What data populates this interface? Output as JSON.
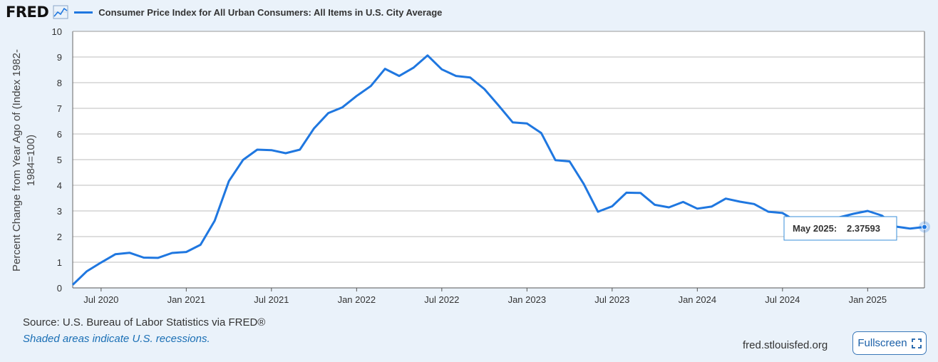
{
  "header": {
    "logo_text": "FRED",
    "legend_title": "Consumer Price Index for All Urban Consumers: All Items in U.S. City Average"
  },
  "footer": {
    "source": "Source: U.S. Bureau of Labor Statistics via FRED®",
    "recession_note": "Shaded areas indicate U.S. recessions.",
    "site": "fred.stlouisfed.org",
    "fullscreen_label": "Fullscreen"
  },
  "colors": {
    "series": "#1f77e0",
    "background": "#eaf2fa",
    "plot": "#ffffff",
    "grid": "#bdbdbd"
  },
  "icons": [
    "chart-icon",
    "fullscreen-icon"
  ],
  "chart_data": {
    "type": "line",
    "title": "",
    "ylabel": "Percent Change from Year Ago of (Index 1982-1984=100)",
    "ylim": [
      0,
      10
    ],
    "yticks": [
      0,
      1,
      2,
      3,
      4,
      5,
      6,
      7,
      8,
      9,
      10
    ],
    "xlim": [
      "2020-05",
      "2025-05"
    ],
    "xticks": [
      {
        "label": "Jul 2020",
        "date": "2020-07"
      },
      {
        "label": "Jan 2021",
        "date": "2021-01"
      },
      {
        "label": "Jul 2021",
        "date": "2021-07"
      },
      {
        "label": "Jan 2022",
        "date": "2022-01"
      },
      {
        "label": "Jul 2022",
        "date": "2022-07"
      },
      {
        "label": "Jan 2023",
        "date": "2023-01"
      },
      {
        "label": "Jul 2023",
        "date": "2023-07"
      },
      {
        "label": "Jan 2024",
        "date": "2024-01"
      },
      {
        "label": "Jul 2024",
        "date": "2024-07"
      },
      {
        "label": "Jan 2025",
        "date": "2025-01"
      }
    ],
    "grid": true,
    "series": [
      {
        "name": "Consumer Price Index for All Urban Consumers: All Items in U.S. City Average",
        "x": [
          "2020-05",
          "2020-06",
          "2020-07",
          "2020-08",
          "2020-09",
          "2020-10",
          "2020-11",
          "2020-12",
          "2021-01",
          "2021-02",
          "2021-03",
          "2021-04",
          "2021-05",
          "2021-06",
          "2021-07",
          "2021-08",
          "2021-09",
          "2021-10",
          "2021-11",
          "2021-12",
          "2022-01",
          "2022-02",
          "2022-03",
          "2022-04",
          "2022-05",
          "2022-06",
          "2022-07",
          "2022-08",
          "2022-09",
          "2022-10",
          "2022-11",
          "2022-12",
          "2023-01",
          "2023-02",
          "2023-03",
          "2023-04",
          "2023-05",
          "2023-06",
          "2023-07",
          "2023-08",
          "2023-09",
          "2023-10",
          "2023-11",
          "2023-12",
          "2024-01",
          "2024-02",
          "2024-03",
          "2024-04",
          "2024-05",
          "2024-06",
          "2024-07",
          "2024-08",
          "2024-09",
          "2024-10",
          "2024-11",
          "2024-12",
          "2025-01",
          "2025-02",
          "2025-03",
          "2025-04",
          "2025-05"
        ],
        "values": [
          0.12,
          0.65,
          0.99,
          1.31,
          1.37,
          1.18,
          1.17,
          1.36,
          1.4,
          1.68,
          2.62,
          4.16,
          4.99,
          5.39,
          5.37,
          5.25,
          5.39,
          6.22,
          6.81,
          7.04,
          7.48,
          7.87,
          8.54,
          8.26,
          8.58,
          9.06,
          8.52,
          8.26,
          8.2,
          7.75,
          7.11,
          6.45,
          6.41,
          6.04,
          4.98,
          4.93,
          4.05,
          2.97,
          3.18,
          3.71,
          3.7,
          3.24,
          3.14,
          3.35,
          3.09,
          3.17,
          3.48,
          3.36,
          3.27,
          2.97,
          2.92,
          2.59,
          2.41,
          2.6,
          2.75,
          2.89,
          3.0,
          2.82,
          2.39,
          2.31,
          2.37593
        ]
      }
    ],
    "tooltip": {
      "label": "May 2025:",
      "value": "2.37593"
    }
  }
}
